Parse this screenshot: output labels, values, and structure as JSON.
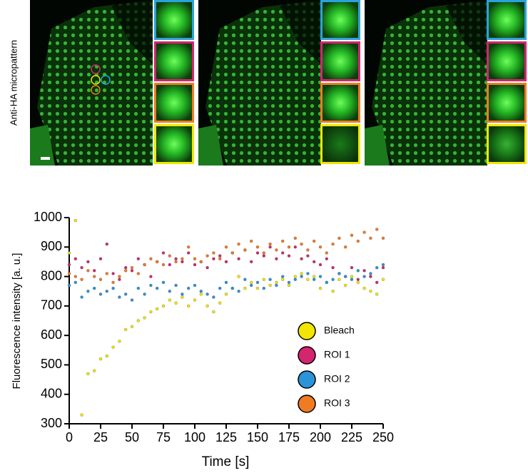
{
  "image_label": "Anti-HA micropattern",
  "chart_data": {
    "type": "scatter",
    "x_label": "Time [s]",
    "y_label": "Fluorescence intensity [a. u.]",
    "x": [
      0,
      5,
      10,
      15,
      20,
      25,
      30,
      35,
      40,
      45,
      50,
      55,
      60,
      65,
      70,
      75,
      80,
      85,
      90,
      95,
      100,
      105,
      110,
      115,
      120,
      125,
      130,
      135,
      140,
      145,
      150,
      155,
      160,
      165,
      170,
      175,
      180,
      185,
      190,
      195,
      200,
      205,
      210,
      215,
      220,
      225,
      230,
      235,
      240,
      245,
      250
    ],
    "series": [
      {
        "name": "Bleach",
        "color": "#f2e600",
        "values": [
          880,
          990,
          330,
          470,
          480,
          520,
          530,
          560,
          580,
          620,
          630,
          650,
          660,
          680,
          690,
          700,
          720,
          710,
          730,
          700,
          720,
          740,
          700,
          680,
          710,
          740,
          760,
          800,
          760,
          780,
          760,
          790,
          770,
          780,
          790,
          770,
          800,
          810,
          790,
          800,
          760,
          780,
          750,
          790,
          770,
          800,
          780,
          760,
          750,
          740,
          790
        ]
      },
      {
        "name": "ROI 1",
        "color": "#d4256f",
        "values": [
          840,
          860,
          830,
          850,
          820,
          860,
          910,
          810,
          790,
          830,
          820,
          860,
          840,
          800,
          850,
          880,
          840,
          860,
          850,
          880,
          840,
          850,
          830,
          860,
          870,
          850,
          880,
          860,
          890,
          850,
          880,
          870,
          900,
          860,
          880,
          870,
          900,
          860,
          870,
          850,
          840,
          860,
          830,
          810,
          800,
          830,
          790,
          820,
          800,
          780,
          830
        ]
      },
      {
        "name": "ROI 2",
        "color": "#2b93d8",
        "values": [
          770,
          780,
          730,
          750,
          760,
          740,
          750,
          760,
          730,
          740,
          720,
          760,
          740,
          770,
          760,
          780,
          750,
          770,
          740,
          760,
          770,
          750,
          740,
          730,
          760,
          780,
          760,
          750,
          790,
          770,
          780,
          760,
          790,
          770,
          800,
          780,
          790,
          800,
          810,
          790,
          800,
          780,
          790,
          810,
          800,
          790,
          820,
          800,
          810,
          830,
          840
        ]
      },
      {
        "name": "ROI 3",
        "color": "#f07b22",
        "values": [
          810,
          800,
          790,
          820,
          800,
          790,
          810,
          780,
          800,
          820,
          830,
          810,
          840,
          860,
          850,
          840,
          870,
          850,
          860,
          900,
          860,
          850,
          870,
          880,
          860,
          900,
          880,
          910,
          890,
          920,
          900,
          880,
          910,
          890,
          920,
          900,
          930,
          910,
          890,
          920,
          900,
          880,
          910,
          930,
          900,
          940,
          920,
          950,
          930,
          960,
          930
        ]
      }
    ],
    "xlim": [
      0,
      250
    ],
    "xticks": [
      0,
      25,
      50,
      75,
      100,
      125,
      150,
      175,
      200,
      225,
      250
    ],
    "ylim": [
      300,
      1000
    ],
    "yticks": [
      300,
      400,
      500,
      600,
      700,
      800,
      900,
      1000
    ],
    "legend": "lower right"
  }
}
